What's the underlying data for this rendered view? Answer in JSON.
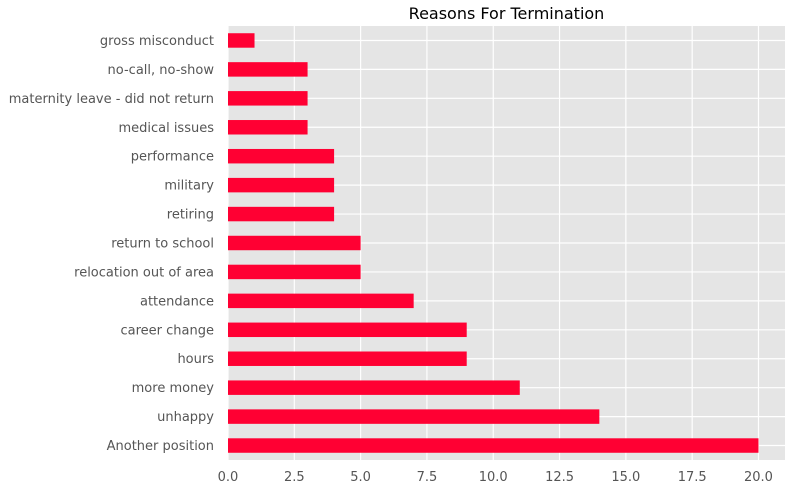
{
  "chart_data": {
    "type": "bar",
    "orientation": "horizontal",
    "title": "Reasons For Termination",
    "xlabel": "",
    "ylabel": "",
    "categories": [
      "Another position",
      "unhappy",
      "more money",
      "hours",
      "career change",
      "attendance",
      "relocation out of area",
      "return to school",
      "retiring",
      "military",
      "performance",
      "medical issues",
      "maternity leave - did not return",
      "no-call, no-show",
      "gross misconduct"
    ],
    "values": [
      20,
      14,
      11,
      9,
      9,
      7,
      5,
      5,
      4,
      4,
      4,
      3,
      3,
      3,
      1
    ],
    "xlim": [
      0,
      21
    ],
    "xticks": [
      0,
      2.5,
      5,
      7.5,
      10,
      12.5,
      15,
      17.5,
      20
    ],
    "xtick_labels": [
      "0.0",
      "2.5",
      "5.0",
      "7.5",
      "10.0",
      "12.5",
      "15.0",
      "17.5",
      "20.0"
    ],
    "grid": true,
    "legend": "none",
    "colors": {
      "bar": "#ff0033",
      "plot_background": "#e5e5e5",
      "grid": "#ffffff",
      "text": "#555555",
      "title": "#000000"
    }
  }
}
